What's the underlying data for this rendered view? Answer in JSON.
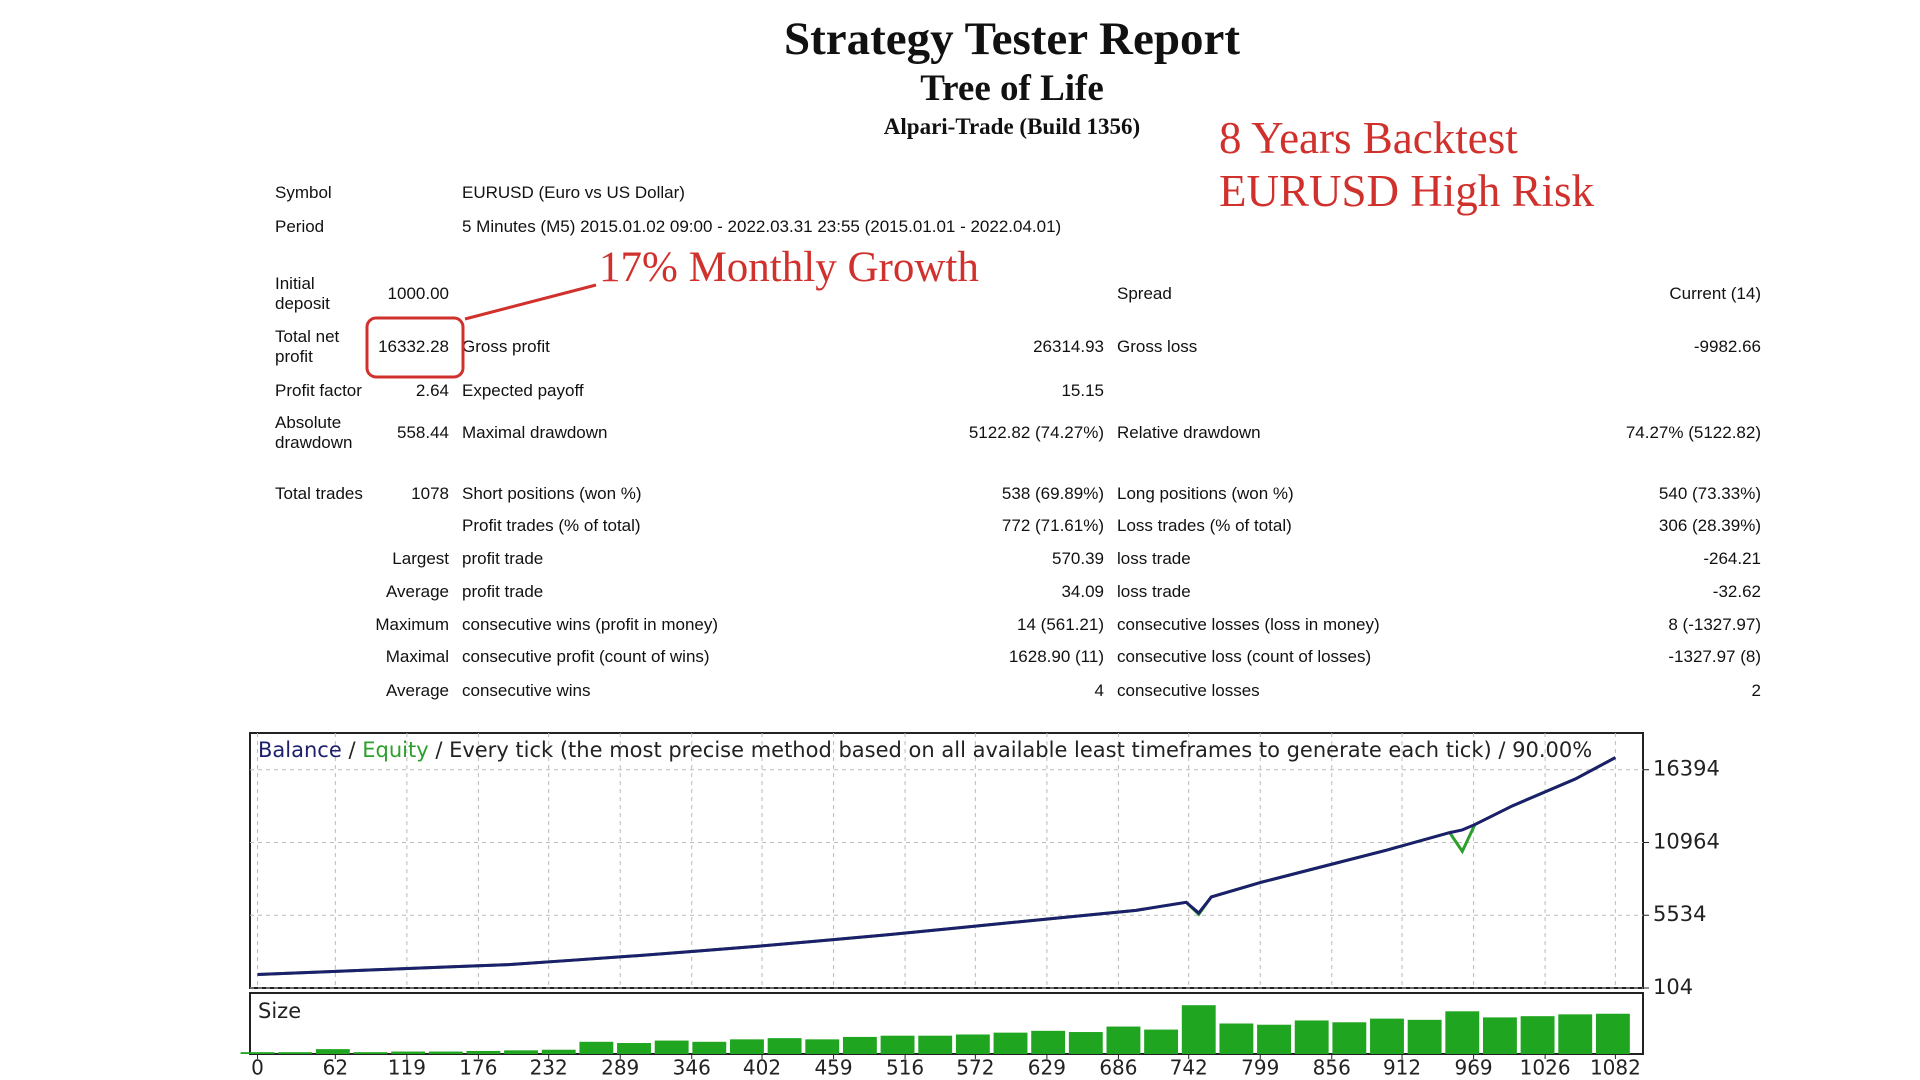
{
  "header": {
    "title": "Strategy Tester Report",
    "subtitle": "Tree of Life",
    "broker": "Alpari-Trade (Build 1356)"
  },
  "annotations": {
    "backtest": "8 Years Backtest",
    "risk": "EURUSD High Risk",
    "growth": "17% Monthly Growth"
  },
  "info": [
    [
      "Symbol",
      "EURUSD (Euro vs US Dollar)"
    ],
    [
      "Period",
      "5 Minutes (M5) 2015.01.02 09:00 - 2022.03.31 23:55 (2015.01.01 - 2022.04.01)"
    ]
  ],
  "table": {
    "rows": [
      [
        "Initial deposit",
        "1000.00",
        null,
        null,
        "Spread",
        "Current (14)"
      ],
      [
        "Total net profit",
        "16332.28",
        "Gross profit",
        "26314.93",
        "Gross loss",
        "-9982.66"
      ],
      [
        "Profit factor",
        "2.64",
        "Expected payoff",
        "15.15",
        null,
        null
      ],
      [
        "Absolute drawdown",
        "558.44",
        "Maximal drawdown",
        "5122.82 (74.27%)",
        "Relative drawdown",
        "74.27% (5122.82)"
      ],
      [
        "Total trades",
        "1078",
        "Short positions (won %)",
        "538 (69.89%)",
        "Long positions (won %)",
        "540 (73.33%)"
      ],
      [
        null,
        null,
        "Profit trades (% of total)",
        "772 (71.61%)",
        "Loss trades (% of total)",
        "306 (28.39%)"
      ],
      [
        null,
        "Largest",
        "profit trade",
        "570.39",
        "loss trade",
        "-264.21"
      ],
      [
        null,
        "Average",
        "profit trade",
        "34.09",
        "loss trade",
        "-32.62"
      ],
      [
        null,
        "Maximum",
        "consecutive wins (profit in money)",
        "14 (561.21)",
        "consecutive losses (loss in money)",
        "8 (-1327.97)"
      ],
      [
        null,
        "Maximal",
        "consecutive profit (count of wins)",
        "1628.90 (11)",
        "consecutive loss (count of losses)",
        "-1327.97 (8)"
      ],
      [
        null,
        "Average",
        "consecutive wins",
        "4",
        "consecutive losses",
        "2"
      ]
    ]
  },
  "chart_data": [
    {
      "type": "line",
      "separator": "/",
      "title": "/ Every tick (the most precise method based on all available least timeframes to generate each tick) / 90.00%",
      "x": [
        0,
        50,
        100,
        150,
        200,
        250,
        300,
        350,
        400,
        450,
        500,
        550,
        600,
        650,
        700,
        720,
        740,
        750,
        760,
        800,
        850,
        900,
        950,
        960,
        970,
        1000,
        1050,
        1082
      ],
      "series": [
        {
          "name": "Balance",
          "color": "#1c1f6b",
          "values": [
            1116,
            1300,
            1484,
            1670,
            1850,
            2170,
            2500,
            2860,
            3230,
            3640,
            4060,
            4520,
            4980,
            5440,
            5900,
            6200,
            6500,
            5700,
            6900,
            8000,
            9200,
            10400,
            11700,
            11900,
            12300,
            13700,
            15700,
            17300
          ]
        },
        {
          "name": "Equity",
          "color": "#2ca02c",
          "values": [
            1116,
            1300,
            1484,
            1670,
            1850,
            2170,
            2500,
            2860,
            3230,
            3640,
            4060,
            4520,
            4980,
            5440,
            5900,
            6200,
            6500,
            5600,
            6900,
            8000,
            9200,
            10400,
            11700,
            10300,
            12300,
            13700,
            15700,
            17300
          ]
        }
      ],
      "xlim": [
        -6,
        1104
      ],
      "ylim": [
        104,
        19134
      ],
      "yticks": [
        16394,
        10964,
        5534,
        104
      ],
      "grid": true
    },
    {
      "type": "bar",
      "title": "Size",
      "color": "#1fa51f",
      "x": [
        0,
        30,
        60,
        90,
        120,
        150,
        180,
        210,
        240,
        270,
        300,
        330,
        360,
        390,
        420,
        450,
        480,
        510,
        540,
        570,
        600,
        630,
        660,
        690,
        720,
        750,
        780,
        810,
        840,
        870,
        900,
        930,
        960,
        990,
        1020,
        1050,
        1080
      ],
      "values": [
        3,
        3,
        8,
        3,
        4,
        4,
        5,
        6,
        7,
        20,
        18,
        22,
        20,
        24,
        26,
        24,
        28,
        30,
        30,
        32,
        35,
        38,
        36,
        45,
        40,
        80,
        50,
        48,
        55,
        52,
        58,
        56,
        70,
        60,
        62,
        65,
        66
      ],
      "xlim": [
        -6,
        1104
      ],
      "ylim": [
        0,
        100
      ],
      "xticks": [
        0,
        62,
        119,
        176,
        232,
        289,
        346,
        402,
        459,
        516,
        572,
        629,
        686,
        742,
        799,
        856,
        912,
        969,
        1026,
        1082
      ]
    }
  ]
}
